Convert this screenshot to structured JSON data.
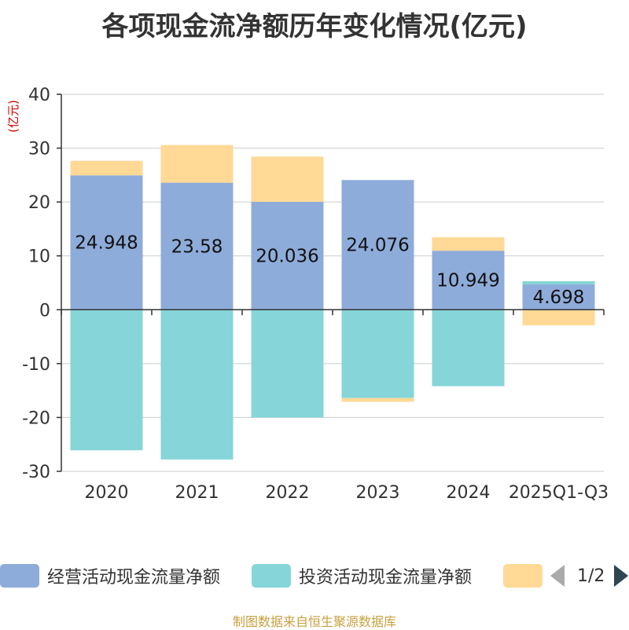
{
  "chart_data": {
    "type": "bar",
    "stacked": true,
    "title": "各项现金流净额历年变化情况(亿元)",
    "ylabel": "(亿元)",
    "xlabel": "",
    "ylim": [
      -30,
      40
    ],
    "yticks": [
      40,
      30,
      20,
      10,
      0,
      -10,
      -20,
      -30
    ],
    "categories": [
      "2020",
      "2021",
      "2022",
      "2023",
      "2024",
      "2025Q1-Q3"
    ],
    "series": [
      {
        "name": "经营活动现金流量净额",
        "color": "#8eacda",
        "values": [
          24.948,
          23.58,
          20.036,
          24.076,
          10.949,
          4.698
        ],
        "show_labels": true
      },
      {
        "name": "投资活动现金流量净额",
        "color": "#86d5d8",
        "values": [
          -26.1,
          -27.8,
          -20.0,
          -16.4,
          -14.2,
          0.6
        ],
        "show_labels": false
      },
      {
        "name": "",
        "color": "#ffd995",
        "values": [
          2.7,
          7.0,
          8.4,
          -0.7,
          2.5,
          -2.9
        ],
        "show_labels": false
      }
    ],
    "legend_position": "bottom",
    "grid": true
  },
  "legend": {
    "page_text": "1/2"
  },
  "source": "制图数据来自恒生聚源数据库"
}
